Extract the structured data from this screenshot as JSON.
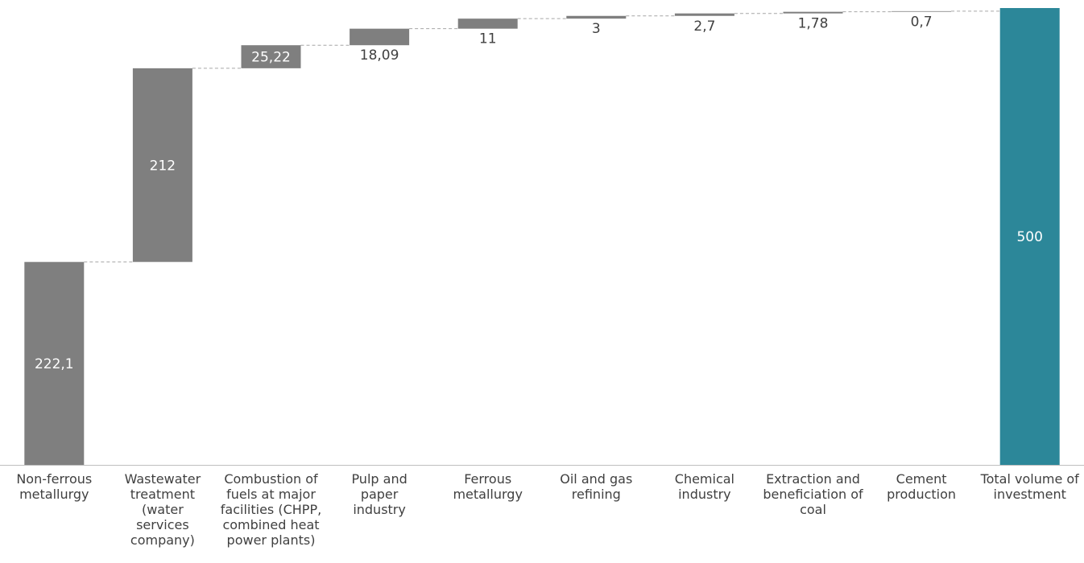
{
  "chart_data": {
    "type": "bar",
    "subtype": "waterfall",
    "title": "",
    "xlabel": "",
    "ylabel": "",
    "categories": [
      "Non-ferrous\nmetallurgy",
      "Wastewater\ntreatment\n(water\nservices\ncompany)",
      "Combustion of\nfuels at major\nfacilities (CHPP,\ncombined heat\npower plants)",
      "Pulp and\npaper\nindustry",
      "Ferrous\nmetallurgy",
      "Oil and gas\nrefining",
      "Chemical\nindustry",
      "Extraction and\nbeneficiation of\ncoal",
      "Cement\nproduction",
      "Total volume of\ninvestment"
    ],
    "values": [
      222.1,
      212,
      25.22,
      18.09,
      11,
      3,
      2.7,
      1.78,
      0.7,
      500
    ],
    "value_labels": [
      "222,1",
      "212",
      "25,22",
      "18,09",
      "11",
      "3",
      "2,7",
      "1,78",
      "0,7",
      "500"
    ],
    "is_total": [
      false,
      false,
      false,
      false,
      false,
      false,
      false,
      false,
      false,
      true
    ],
    "ylim": [
      0,
      500
    ],
    "grid": false,
    "legend": "none",
    "colors": {
      "increment": "#7f7f7f",
      "total": "#2c8799",
      "connector": "#a6a6a6",
      "axis": "#bfbfbf",
      "label_inside": "#ffffff",
      "label_outside": "#404040"
    }
  }
}
